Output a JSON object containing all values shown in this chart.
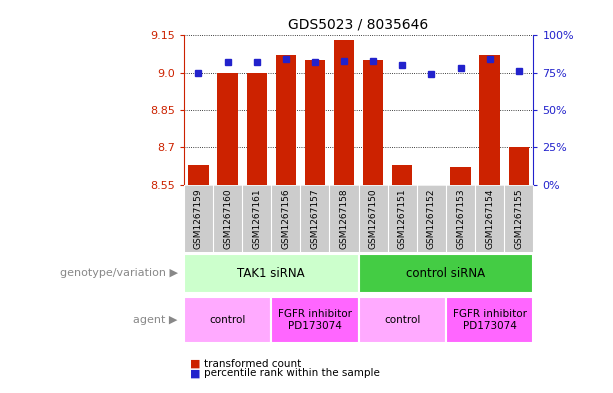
{
  "title": "GDS5023 / 8035646",
  "samples": [
    "GSM1267159",
    "GSM1267160",
    "GSM1267161",
    "GSM1267156",
    "GSM1267157",
    "GSM1267158",
    "GSM1267150",
    "GSM1267151",
    "GSM1267152",
    "GSM1267153",
    "GSM1267154",
    "GSM1267155"
  ],
  "red_values": [
    8.63,
    9.0,
    9.0,
    9.07,
    9.05,
    9.13,
    9.05,
    8.63,
    8.55,
    8.62,
    9.07,
    8.7
  ],
  "blue_values": [
    75,
    82,
    82,
    84,
    82,
    83,
    83,
    80,
    74,
    78,
    84,
    76
  ],
  "ylim_left": [
    8.55,
    9.15
  ],
  "ylim_right": [
    0,
    100
  ],
  "yticks_left": [
    8.55,
    8.7,
    8.85,
    9.0,
    9.15
  ],
  "yticks_right": [
    0,
    25,
    50,
    75,
    100
  ],
  "ytick_labels_right": [
    "0%",
    "25%",
    "50%",
    "75%",
    "100%"
  ],
  "bar_bottom": 8.55,
  "bar_color": "#cc2200",
  "dot_color": "#2222cc",
  "genotype_groups": [
    {
      "label": "TAK1 siRNA",
      "start": 0,
      "end": 6,
      "color": "#ccffcc"
    },
    {
      "label": "control siRNA",
      "start": 6,
      "end": 12,
      "color": "#44cc44"
    }
  ],
  "agent_groups": [
    {
      "label": "control",
      "start": 0,
      "end": 3,
      "color": "#ffaaff"
    },
    {
      "label": "FGFR inhibitor\nPD173074",
      "start": 3,
      "end": 6,
      "color": "#ff66ff"
    },
    {
      "label": "control",
      "start": 6,
      "end": 9,
      "color": "#ffaaff"
    },
    {
      "label": "FGFR inhibitor\nPD173074",
      "start": 9,
      "end": 12,
      "color": "#ff66ff"
    }
  ],
  "legend_items": [
    {
      "label": "transformed count",
      "color": "#cc2200"
    },
    {
      "label": "percentile rank within the sample",
      "color": "#2222cc"
    }
  ],
  "bg_color": "#ffffff",
  "plot_bg": "#ffffff",
  "xlabels_bg": "#cccccc",
  "geno_label": "genotype/variation ▶",
  "agent_label": "agent ▶"
}
